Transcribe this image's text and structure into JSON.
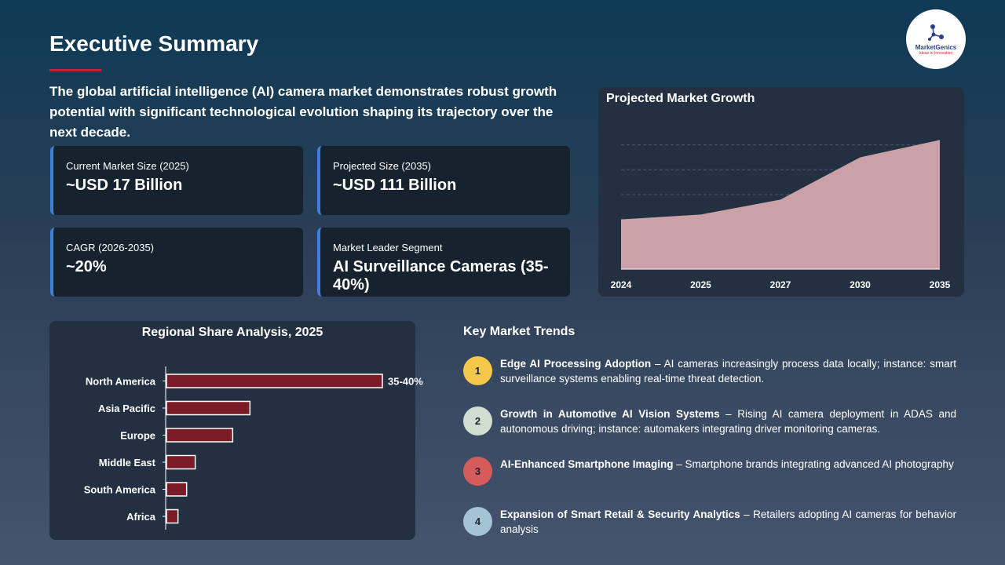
{
  "header": {
    "title": "Executive Summary",
    "intro": "The global artificial intelligence (AI) camera market demonstrates robust growth potential with significant technological evolution shaping its trajectory over the next decade."
  },
  "logo": {
    "name": "MarketGenics",
    "tagline": "Ideas to Innovation",
    "icon": "molecule-network-icon"
  },
  "stats": [
    {
      "label": "Current Market Size (2025)",
      "value": "~USD 17 Billion"
    },
    {
      "label": "Projected Size (2035)",
      "value": "~USD 111 Billion"
    },
    {
      "label": "CAGR (2026-2035)",
      "value": "~20%"
    },
    {
      "label": "Market Leader Segment",
      "value": "AI Surveillance Cameras (35-40%)"
    }
  ],
  "colors": {
    "accent_border": "#3f7fdc",
    "underline": "#c0262b",
    "area_fill": "#c9a1a6",
    "bar_fill": "#7a1c27"
  },
  "chart_data": [
    {
      "type": "area",
      "title": "Projected Market Growth",
      "x": [
        "2024",
        "2025",
        "2027",
        "2030",
        "2035"
      ],
      "series": [
        {
          "values": [
            20,
            22,
            28,
            45,
            52
          ]
        }
      ],
      "ylim": [
        0,
        60
      ],
      "grid": true,
      "xlabel": "",
      "ylabel": ""
    },
    {
      "type": "bar",
      "orientation": "horizontal",
      "title": "Regional Share Analysis, 2025",
      "categories": [
        "North America",
        "Asia Pacific",
        "Europe",
        "Middle East",
        "South America",
        "Africa"
      ],
      "values": [
        37.5,
        14.5,
        11.5,
        5,
        3.5,
        2
      ],
      "data_labels": [
        "35-40%",
        "",
        "",
        "",
        "",
        ""
      ],
      "xlim": [
        0,
        45
      ]
    }
  ],
  "trends": {
    "title": "Key Market Trends",
    "items": [
      {
        "num": "1",
        "heading": "Edge AI Processing Adoption",
        "text": " – AI cameras increasingly process data locally; instance: smart surveillance systems enabling real-time threat detection.",
        "color": "#f3c84b"
      },
      {
        "num": "2",
        "heading": "Growth in Automotive AI Vision Systems",
        "text": " – Rising AI camera deployment in ADAS and autonomous driving; instance: automakers integrating driver monitoring cameras.",
        "color": "#d2ddd2"
      },
      {
        "num": "3",
        "heading": "AI-Enhanced Smartphone Imaging",
        "text": " – Smartphone brands integrating advanced AI photography",
        "color": "#d65c5c"
      },
      {
        "num": "4",
        "heading": "Expansion of Smart Retail & Security Analytics",
        "text": " – Retailers adopting AI cameras for behavior analysis",
        "color": "#a4c3d4"
      }
    ]
  }
}
